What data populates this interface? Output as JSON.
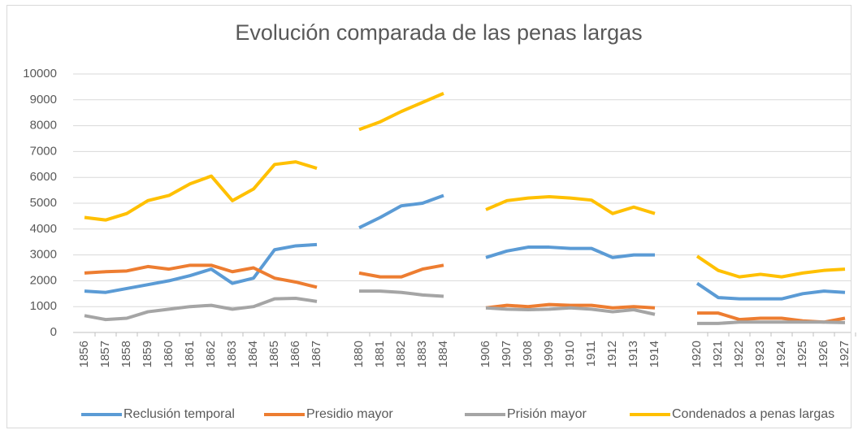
{
  "chart_data": {
    "type": "line",
    "title": "Evolución comparada de las penas largas",
    "categories": [
      "1856",
      "1857",
      "1858",
      "1859",
      "1860",
      "1861",
      "1862",
      "1863",
      "1864",
      "1865",
      "1866",
      "1867",
      null,
      "1880",
      "1881",
      "1882",
      "1883",
      "1884",
      null,
      "1906",
      "1907",
      "1908",
      "1909",
      "1910",
      "1911",
      "1912",
      "1913",
      "1914",
      null,
      "1920",
      "1921",
      "1922",
      "1923",
      "1924",
      "1925",
      "1926",
      "1927"
    ],
    "series": [
      {
        "name": "Reclusión temporal",
        "color": "#5b9bd5",
        "values": [
          1600,
          1550,
          1700,
          1850,
          2000,
          2200,
          2450,
          1900,
          2100,
          3200,
          3350,
          3400,
          null,
          4050,
          4450,
          4900,
          5000,
          5300,
          null,
          2900,
          3150,
          3300,
          3300,
          3250,
          3250,
          2900,
          3000,
          3000,
          null,
          1900,
          1350,
          1300,
          1300,
          1300,
          1500,
          1600,
          1550
        ]
      },
      {
        "name": "Presidio mayor",
        "color": "#ed7d31",
        "values": [
          2300,
          2350,
          2380,
          2550,
          2450,
          2600,
          2600,
          2350,
          2500,
          2100,
          1950,
          1750,
          null,
          2300,
          2150,
          2150,
          2450,
          2600,
          null,
          950,
          1050,
          1000,
          1080,
          1050,
          1050,
          950,
          1000,
          950,
          null,
          750,
          750,
          500,
          550,
          550,
          450,
          400,
          550
        ]
      },
      {
        "name": "Prisión mayor",
        "color": "#a5a5a5",
        "values": [
          650,
          500,
          550,
          800,
          900,
          1000,
          1050,
          900,
          1000,
          1300,
          1320,
          1200,
          null,
          1600,
          1600,
          1550,
          1450,
          1400,
          null,
          950,
          900,
          880,
          900,
          950,
          900,
          800,
          880,
          700,
          null,
          350,
          350,
          400,
          400,
          400,
          400,
          400,
          380
        ]
      },
      {
        "name": "Condenados a penas largas",
        "color": "#ffc000",
        "values": [
          4450,
          4350,
          4600,
          5100,
          5300,
          5750,
          6050,
          5100,
          5550,
          6500,
          6600,
          6350,
          null,
          7850,
          8150,
          8550,
          8900,
          9250,
          null,
          4750,
          5100,
          5200,
          5250,
          5200,
          5120,
          4600,
          4850,
          4600,
          null,
          2950,
          2400,
          2150,
          2250,
          2150,
          2300,
          2400,
          2450
        ]
      }
    ],
    "ylim": [
      0,
      10000
    ],
    "yticks": [
      0,
      1000,
      2000,
      3000,
      4000,
      5000,
      6000,
      7000,
      8000,
      9000,
      10000
    ],
    "grid": true,
    "legend": "bottom"
  }
}
